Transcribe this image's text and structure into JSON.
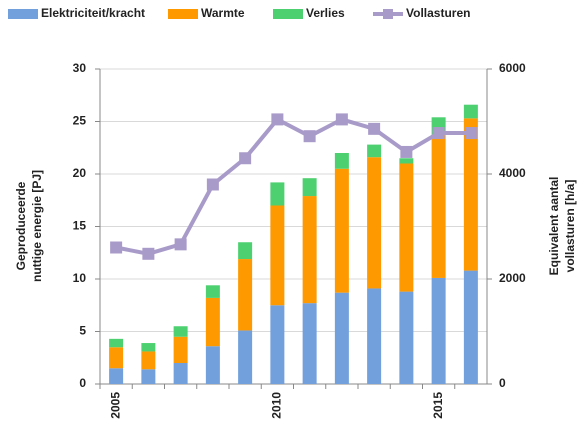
{
  "chart_data": {
    "type": "bar",
    "stacked": true,
    "categories": [
      "2005",
      null,
      null,
      null,
      null,
      "2010",
      null,
      null,
      null,
      null,
      "2015",
      null
    ],
    "series": [
      {
        "name": "Elektriciteit/kracht",
        "color": "#71a0dc",
        "values": [
          1.5,
          1.4,
          2.0,
          3.6,
          5.1,
          7.5,
          7.7,
          8.7,
          9.1,
          8.8,
          10.1,
          10.8
        ]
      },
      {
        "name": "Warmte",
        "color": "#ff9900",
        "values": [
          2.0,
          1.7,
          2.5,
          4.6,
          6.8,
          9.5,
          10.2,
          11.8,
          12.5,
          12.2,
          13.6,
          14.5
        ]
      },
      {
        "name": "Verlies",
        "color": "#4dd070",
        "values": [
          0.8,
          0.8,
          1.0,
          1.2,
          1.6,
          2.2,
          1.7,
          1.5,
          1.2,
          0.5,
          1.7,
          1.3
        ]
      },
      {
        "name": "Vollasturen",
        "color": "#a99bc9",
        "type": "line",
        "axis": "y2",
        "values": [
          2600,
          2480,
          2660,
          3800,
          4300,
          5040,
          4720,
          5040,
          4860,
          4420,
          4780,
          4780
        ]
      }
    ],
    "ylabel": [
      "Geproduceerde",
      "nuttige energie [PJ]"
    ],
    "y2label": [
      "Equivalent aantal",
      "vollasturen [h/a]"
    ],
    "ylim": [
      0,
      30
    ],
    "yticks": [
      0,
      5,
      10,
      15,
      20,
      25,
      30
    ],
    "y2lim": [
      0,
      6000
    ],
    "y2ticks": [
      0,
      2000,
      4000,
      6000
    ],
    "grid": true,
    "legend": "top"
  }
}
